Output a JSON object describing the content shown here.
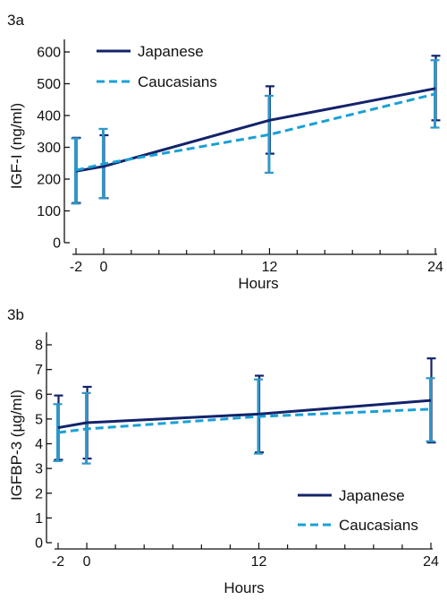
{
  "colors": {
    "japanese": "#13236a",
    "caucasians": "#1aa0d6",
    "errorbar_caucasians": "#2f97c8",
    "axis": "#111111"
  },
  "chart_data": [
    {
      "panel_label": "3a",
      "type": "line",
      "xlabel": "Hours",
      "ylabel": "IGF-I (ng/ml)",
      "xticks": [
        -2,
        0,
        12,
        24
      ],
      "ylim": [
        0,
        600
      ],
      "yticks": [
        0,
        100,
        200,
        300,
        400,
        500,
        600
      ],
      "legend_position": "top-left",
      "grid": false,
      "series": [
        {
          "name": "Japanese",
          "line_style": "solid",
          "color": "#13236a",
          "x": [
            -2,
            0,
            12,
            24
          ],
          "y": [
            225,
            240,
            385,
            485
          ],
          "err_low": [
            125,
            140,
            280,
            385
          ],
          "err_high": [
            330,
            338,
            492,
            588
          ]
        },
        {
          "name": "Caucasians",
          "line_style": "dashed",
          "color": "#1aa0d6",
          "x": [
            -2,
            0,
            12,
            24
          ],
          "y": [
            228,
            248,
            340,
            468
          ],
          "err_low": [
            123,
            140,
            220,
            362
          ],
          "err_high": [
            328,
            358,
            462,
            574
          ]
        }
      ]
    },
    {
      "panel_label": "3b",
      "type": "line",
      "xlabel": "Hours",
      "ylabel": "IGFBP-3 (µg/ml)",
      "xticks": [
        -2,
        0,
        12,
        24
      ],
      "ylim": [
        0,
        8
      ],
      "yticks": [
        0,
        1,
        2,
        3,
        4,
        5,
        6,
        7,
        8
      ],
      "legend_position": "bottom-right",
      "grid": false,
      "series": [
        {
          "name": "Japanese",
          "line_style": "solid",
          "color": "#13236a",
          "x": [
            -2,
            0,
            12,
            24
          ],
          "y": [
            4.65,
            4.85,
            5.2,
            5.75
          ],
          "err_low": [
            3.35,
            3.4,
            3.65,
            4.05
          ],
          "err_high": [
            5.95,
            6.3,
            6.75,
            7.45
          ]
        },
        {
          "name": "Caucasians",
          "line_style": "dashed",
          "color": "#1aa0d6",
          "x": [
            -2,
            0,
            12,
            24
          ],
          "y": [
            4.45,
            4.6,
            5.1,
            5.4
          ],
          "err_low": [
            3.3,
            3.2,
            3.6,
            4.1
          ],
          "err_high": [
            5.6,
            6.05,
            6.6,
            6.65
          ]
        }
      ]
    }
  ]
}
